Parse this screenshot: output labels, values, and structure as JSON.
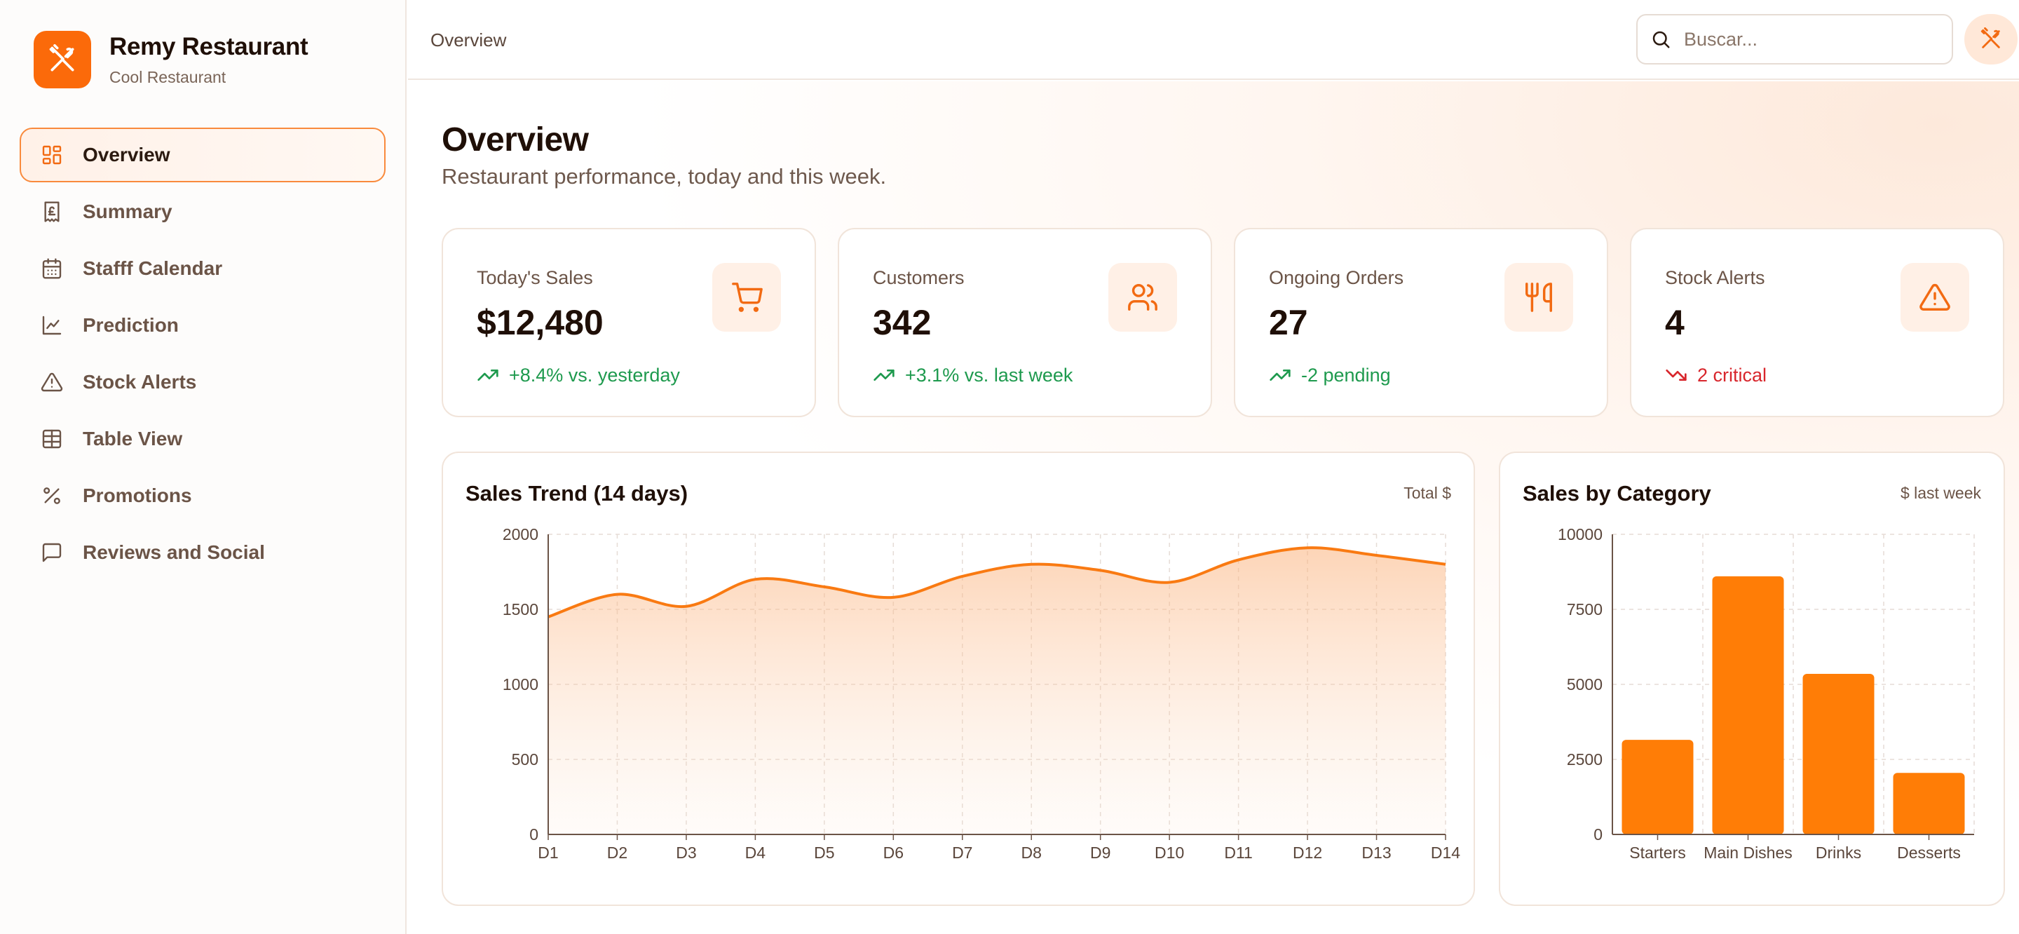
{
  "brand": {
    "name": "Remy Restaurant",
    "subtitle": "Cool Restaurant"
  },
  "sidebar": {
    "items": [
      {
        "label": "Overview",
        "icon": "layout-grid-icon",
        "active": true
      },
      {
        "label": "Summary",
        "icon": "receipt-icon",
        "active": false
      },
      {
        "label": "Stafff Calendar",
        "icon": "calendar-icon",
        "active": false
      },
      {
        "label": "Prediction",
        "icon": "line-chart-icon",
        "active": false
      },
      {
        "label": "Stock Alerts",
        "icon": "warning-icon",
        "active": false
      },
      {
        "label": "Table View",
        "icon": "table-icon",
        "active": false
      },
      {
        "label": "Promotions",
        "icon": "percent-icon",
        "active": false
      },
      {
        "label": "Reviews and Social",
        "icon": "message-icon",
        "active": false
      }
    ]
  },
  "header": {
    "breadcrumb": "Overview",
    "search_placeholder": "Buscar..."
  },
  "page": {
    "title": "Overview",
    "subtitle": "Restaurant performance, today and this week."
  },
  "stats": [
    {
      "label": "Today's Sales",
      "value": "$12,480",
      "trend": "+8.4% vs. yesterday",
      "direction": "up",
      "icon": "cart-icon"
    },
    {
      "label": "Customers",
      "value": "342",
      "trend": "+3.1% vs. last week",
      "direction": "up",
      "icon": "users-icon"
    },
    {
      "label": "Ongoing Orders",
      "value": "27",
      "trend": "-2 pending",
      "direction": "up",
      "icon": "utensils-icon"
    },
    {
      "label": "Stock Alerts",
      "value": "4",
      "trend": "2 critical",
      "direction": "down",
      "icon": "warning-icon"
    }
  ],
  "colors": {
    "accent": "#fb6a0a",
    "bar": "#ff7d06",
    "line": "#f97a12",
    "positive": "#1e9a4e",
    "negative": "#d8262c"
  },
  "chart_data": [
    {
      "type": "area",
      "title": "Sales Trend (14 days)",
      "meta": "Total $",
      "categories": [
        "D1",
        "D2",
        "D3",
        "D4",
        "D5",
        "D6",
        "D7",
        "D8",
        "D9",
        "D10",
        "D11",
        "D12",
        "D13",
        "D14"
      ],
      "values": [
        1450,
        1600,
        1520,
        1700,
        1650,
        1580,
        1720,
        1800,
        1760,
        1680,
        1830,
        1910,
        1860,
        1800
      ],
      "ylim": [
        0,
        2000
      ],
      "yticks": [
        0,
        500,
        1000,
        1500,
        2000
      ],
      "grid": true
    },
    {
      "type": "bar",
      "title": "Sales by Category",
      "meta": "$ last week",
      "categories": [
        "Starters",
        "Main Dishes",
        "Drinks",
        "Desserts"
      ],
      "values": [
        3150,
        8600,
        5350,
        2050
      ],
      "ylim": [
        0,
        10000
      ],
      "yticks": [
        0,
        2500,
        5000,
        7500,
        10000
      ],
      "grid": true
    }
  ]
}
